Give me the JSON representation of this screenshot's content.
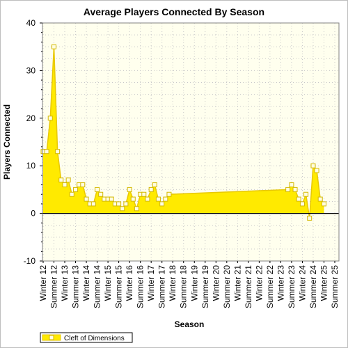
{
  "chart_data": {
    "type": "area",
    "title": "Average Players Connected By Season",
    "xlabel": "Season",
    "ylabel": "Players Connected",
    "ylim": [
      -10,
      40
    ],
    "yticks": [
      -10,
      0,
      10,
      20,
      30,
      40
    ],
    "grid": true,
    "legend_position": "bottom-left",
    "colors": {
      "plot_background": "#ffffee",
      "fill": "#ffea00",
      "line": "#e8c800",
      "marker_fill": "#fffde0",
      "marker_stroke": "#d4b800",
      "grid": "#c8c8c8",
      "zero_line": "#000000",
      "axis": "#808080"
    },
    "categories": [
      "Winter 12",
      "Summer 12",
      "Winter 13",
      "Summer 13",
      "Winter 14",
      "Summer 14",
      "Winter 15",
      "Summer 15",
      "Winter 16",
      "Summer 16",
      "Winter 17",
      "Summer 17",
      "Winter 18",
      "Summer 18",
      "Winter 19",
      "Summer 19",
      "Winter 20",
      "Summer 20",
      "Winter 21",
      "Summer 21",
      "Winter 22",
      "Summer 22",
      "Winter 23",
      "Summer 23",
      "Winter 24",
      "Summer 24",
      "Winter 25",
      "Summer 25"
    ],
    "series": [
      {
        "name": "Cleft of Dimensions",
        "points": [
          [
            0.0,
            13
          ],
          [
            0.33,
            13
          ],
          [
            0.66,
            20
          ],
          [
            1.0,
            35
          ],
          [
            1.33,
            13
          ],
          [
            1.66,
            7
          ],
          [
            2.0,
            6
          ],
          [
            2.33,
            7
          ],
          [
            2.66,
            4
          ],
          [
            3.0,
            5
          ],
          [
            3.33,
            6
          ],
          [
            3.66,
            6
          ],
          [
            4.0,
            3
          ],
          [
            4.33,
            2
          ],
          [
            4.66,
            2
          ],
          [
            5.0,
            5
          ],
          [
            5.33,
            4
          ],
          [
            5.66,
            3
          ],
          [
            6.0,
            3
          ],
          [
            6.33,
            3
          ],
          [
            6.66,
            2
          ],
          [
            7.0,
            2
          ],
          [
            7.33,
            1
          ],
          [
            7.66,
            2
          ],
          [
            8.0,
            5
          ],
          [
            8.33,
            3
          ],
          [
            8.66,
            1
          ],
          [
            9.0,
            4
          ],
          [
            9.33,
            4
          ],
          [
            9.66,
            3
          ],
          [
            10.0,
            5
          ],
          [
            10.33,
            6
          ],
          [
            10.66,
            3
          ],
          [
            11.0,
            2
          ],
          [
            11.33,
            3
          ],
          [
            11.66,
            4
          ],
          [
            22.66,
            5
          ],
          [
            23.0,
            6
          ],
          [
            23.33,
            5
          ],
          [
            23.66,
            3
          ],
          [
            24.0,
            2
          ],
          [
            24.33,
            4
          ],
          [
            24.66,
            -1
          ],
          [
            25.0,
            10
          ],
          [
            25.33,
            9
          ],
          [
            25.66,
            3
          ],
          [
            26.0,
            2
          ]
        ]
      }
    ]
  }
}
